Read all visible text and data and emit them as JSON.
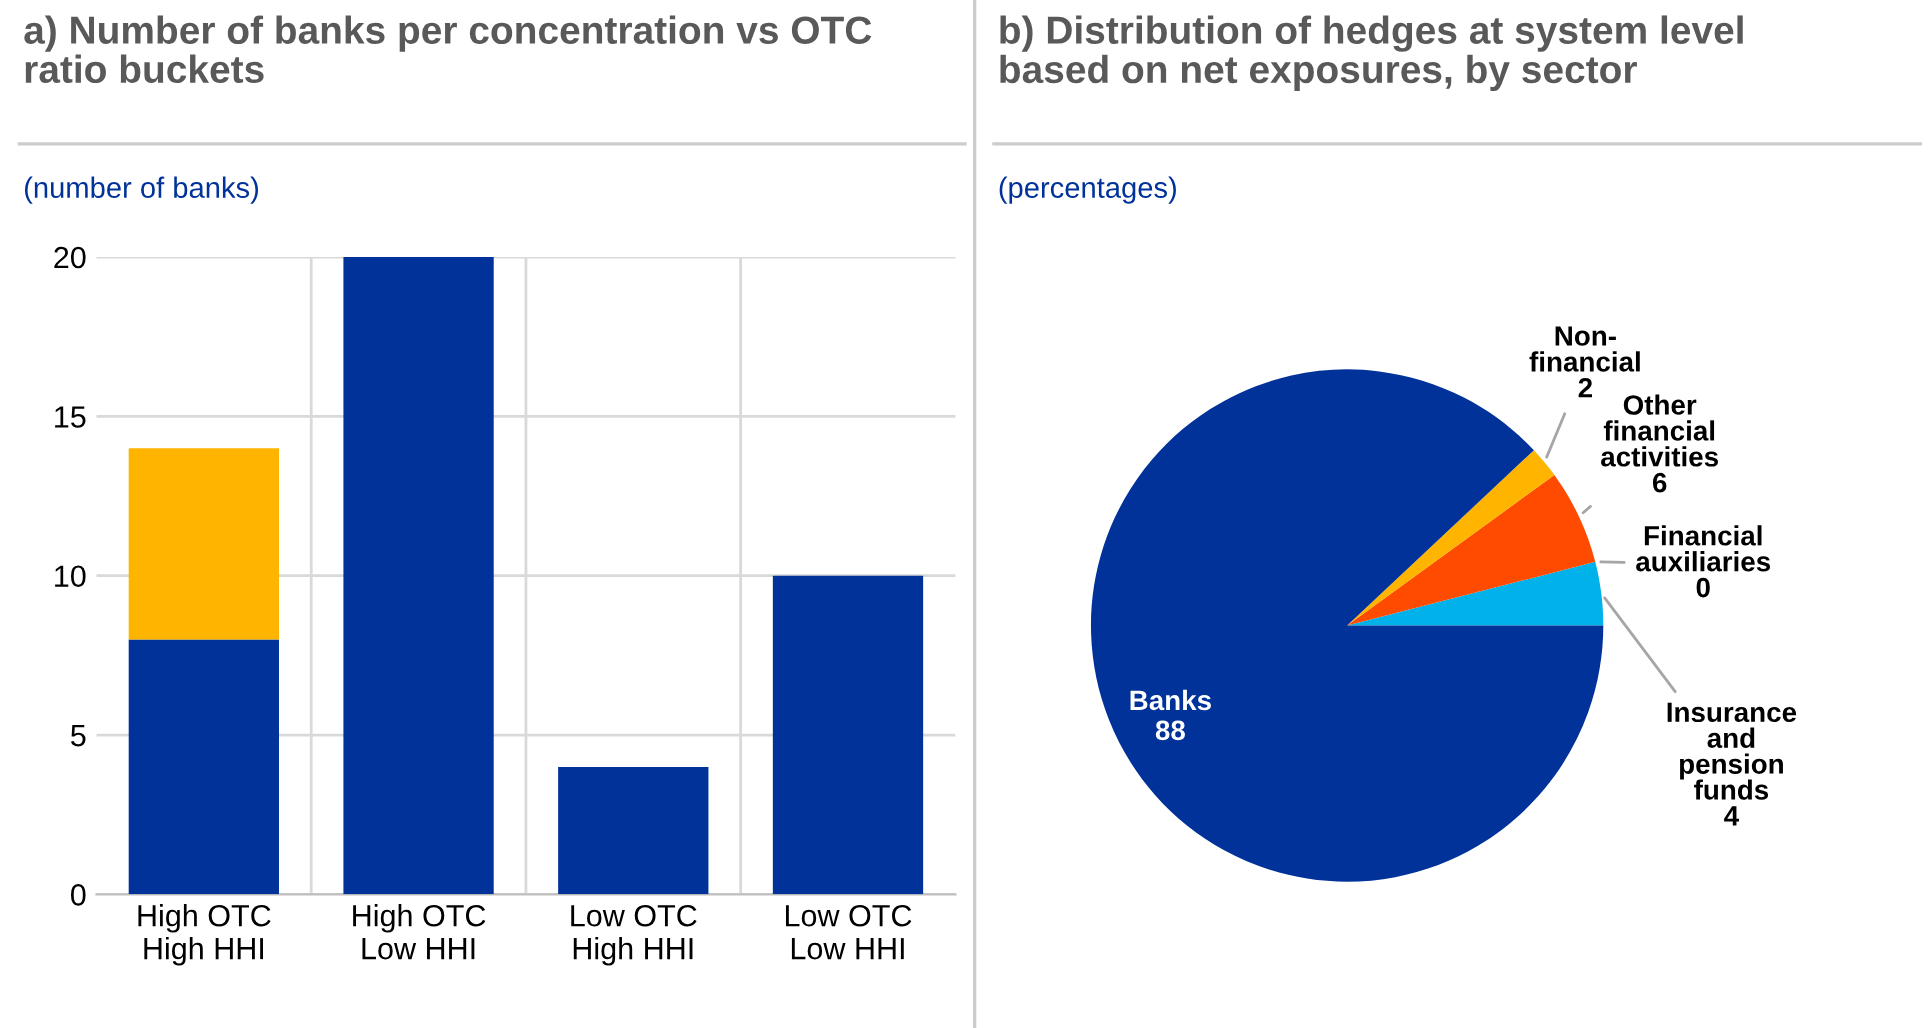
{
  "chart_data": [
    {
      "type": "bar",
      "title": "a) Number of banks per concentration vs OTC\nratio buckets",
      "subtitle": "(number of banks)",
      "categories": [
        "High OTC\nHigh HHI",
        "High OTC\nLow HHI",
        "Low OTC\nHigh HHI",
        "Low OTC\nLow HHI"
      ],
      "stacked": true,
      "series": [
        {
          "color": "#003299",
          "values": [
            8,
            20,
            4,
            10
          ]
        },
        {
          "color": "#ffb400",
          "values": [
            6,
            0,
            0,
            0
          ]
        }
      ],
      "ylim": [
        0,
        20
      ],
      "yticks": [
        0,
        5,
        10,
        15,
        20
      ],
      "grid": true
    },
    {
      "type": "pie",
      "title": "b) Distribution of hedges at system level\nbased on net exposures, by sector",
      "subtitle": "(percentages)",
      "categories": [
        "Insurance\nand\npension\nfunds",
        "Financial\nauxiliaries",
        "Other\nfinancial\nactivities",
        "Non-\nfinancial",
        "Banks"
      ],
      "values": [
        4,
        0,
        6,
        2,
        88
      ],
      "colors": [
        "#00b1ea",
        "#7f7f7f",
        "#ff4b00",
        "#ffb400",
        "#003299"
      ],
      "value_labels": [
        "4",
        "0",
        "6",
        "2",
        "88"
      ]
    }
  ]
}
